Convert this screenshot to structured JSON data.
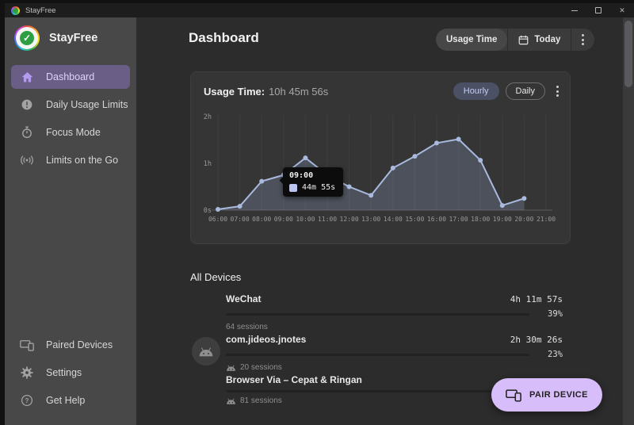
{
  "window": {
    "title": "StayFree"
  },
  "sidebar": {
    "brand": "StayFree",
    "items": [
      {
        "label": "Dashboard",
        "icon": "home-icon",
        "active": true
      },
      {
        "label": "Daily Usage Limits",
        "icon": "exclamation-circle-icon",
        "active": false
      },
      {
        "label": "Focus Mode",
        "icon": "stopwatch-icon",
        "active": false
      },
      {
        "label": "Limits on the Go",
        "icon": "signal-icon",
        "active": false
      }
    ],
    "footer_items": [
      {
        "label": "Paired Devices",
        "icon": "devices-icon"
      },
      {
        "label": "Settings",
        "icon": "gear-icon"
      },
      {
        "label": "Get Help",
        "icon": "help-circle-icon"
      }
    ]
  },
  "header": {
    "title": "Dashboard",
    "metric_button": "Usage Time",
    "date_button": "Today",
    "menu_icon": "kebab-menu-icon"
  },
  "usage_card": {
    "title": "Usage Time:",
    "total": "10h 45m 56s",
    "toggle_hourly": "Hourly",
    "toggle_daily": "Daily",
    "active_toggle": "Hourly",
    "tooltip": {
      "time": "09:00",
      "value": "44m 55s"
    }
  },
  "chart_data": {
    "type": "area",
    "title": "Usage Time by hour",
    "x_labels": [
      "06:00",
      "07:00",
      "08:00",
      "09:00",
      "10:00",
      "11:00",
      "12:00",
      "13:00",
      "14:00",
      "15:00",
      "16:00",
      "17:00",
      "18:00",
      "19:00",
      "20:00",
      "21:00"
    ],
    "y_ticks": [
      "0s",
      "1h",
      "2h"
    ],
    "ylim_minutes": [
      0,
      120
    ],
    "grid": "vertical-only",
    "series": [
      {
        "name": "Usage",
        "categories": [
          "06:00",
          "07:00",
          "08:00",
          "09:00",
          "10:00",
          "11:00",
          "12:00",
          "13:00",
          "14:00",
          "15:00",
          "16:00",
          "17:00",
          "18:00",
          "19:00",
          "20:00"
        ],
        "values_minutes": [
          1,
          5,
          37,
          45,
          67,
          45,
          30,
          19,
          54,
          69,
          86,
          91,
          64,
          6,
          15
        ]
      }
    ],
    "highlighted_point": {
      "x": "09:00",
      "label": "44m 55s"
    }
  },
  "devices": {
    "heading": "All Devices",
    "rows": [
      {
        "name": "WeChat",
        "time": "4h 11m 57s",
        "percent": "39%",
        "sessions": "64 sessions",
        "bar_fill": 0
      },
      {
        "name": "com.jideos.jnotes",
        "time": "2h 30m 26s",
        "percent": "23%",
        "sessions": "20 sessions",
        "bar_fill": 23
      },
      {
        "name": "Browser Via – Cepat & Ringan",
        "time": "",
        "percent": "",
        "sessions": "81 sessions",
        "bar_fill": 0
      }
    ]
  },
  "pair_button": {
    "label": "PAIR DEVICE"
  },
  "colors": {
    "accent_selected_nav": "#6a5e87",
    "accent_lavender_button": "#d7bdf9",
    "chart_line": "#a9bade",
    "chart_fill": "#8fa0c6",
    "hourly_pill_bg": "#4b5064",
    "hourly_pill_text": "#c3cdf6",
    "sidebar_bg": "#484848",
    "main_bg": "#2c2c2c",
    "card_bg": "#353535",
    "tooltip_bg": "#0c0c0c"
  }
}
